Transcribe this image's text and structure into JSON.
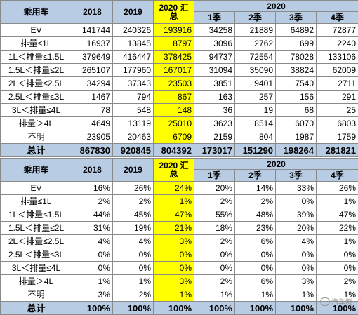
{
  "headers": {
    "corner": "乘用车",
    "y2018": "2018",
    "y2019": "2019",
    "total2020": "2020 汇总",
    "year2020": "2020",
    "q1": "1季",
    "q2": "2季",
    "q3": "3季",
    "q4": "4季"
  },
  "counts": {
    "rows": [
      {
        "label": "EV",
        "v2018": "141744",
        "v2019": "240326",
        "v2020": "193916",
        "q1": "34258",
        "q2": "21889",
        "q3": "64892",
        "q4": "72877"
      },
      {
        "label": "排量≤1L",
        "v2018": "16937",
        "v2019": "13845",
        "v2020": "8797",
        "q1": "3096",
        "q2": "2762",
        "q3": "699",
        "q4": "2240"
      },
      {
        "label": "1L＜排量≤1.5L",
        "v2018": "379649",
        "v2019": "416447",
        "v2020": "378425",
        "q1": "94737",
        "q2": "72554",
        "q3": "78028",
        "q4": "133106"
      },
      {
        "label": "1.5L＜排量≤2L",
        "v2018": "265107",
        "v2019": "177960",
        "v2020": "167017",
        "q1": "31094",
        "q2": "35090",
        "q3": "38824",
        "q4": "62009"
      },
      {
        "label": "2L＜排量≤2.5L",
        "v2018": "34294",
        "v2019": "37343",
        "v2020": "23503",
        "q1": "3851",
        "q2": "9401",
        "q3": "7540",
        "q4": "2711"
      },
      {
        "label": "2.5L＜排量≤3L",
        "v2018": "1467",
        "v2019": "794",
        "v2020": "867",
        "q1": "163",
        "q2": "257",
        "q3": "156",
        "q4": "291"
      },
      {
        "label": "3L＜排量≤4L",
        "v2018": "78",
        "v2019": "548",
        "v2020": "148",
        "q1": "36",
        "q2": "19",
        "q3": "68",
        "q4": "25"
      },
      {
        "label": "排量＞4L",
        "v2018": "4649",
        "v2019": "13119",
        "v2020": "25010",
        "q1": "3623",
        "q2": "8514",
        "q3": "6070",
        "q4": "6803"
      },
      {
        "label": "不明",
        "v2018": "23905",
        "v2019": "20463",
        "v2020": "6709",
        "q1": "2159",
        "q2": "804",
        "q3": "1987",
        "q4": "1759"
      }
    ],
    "total": {
      "label": "总计",
      "v2018": "867830",
      "v2019": "920845",
      "v2020": "804392",
      "q1": "173017",
      "q2": "151290",
      "q3": "198264",
      "q4": "281821"
    }
  },
  "shares": {
    "rows": [
      {
        "label": "EV",
        "v2018": "16%",
        "v2019": "26%",
        "v2020": "24%",
        "q1": "20%",
        "q2": "14%",
        "q3": "33%",
        "q4": "26%"
      },
      {
        "label": "排量≤1L",
        "v2018": "2%",
        "v2019": "2%",
        "v2020": "1%",
        "q1": "2%",
        "q2": "2%",
        "q3": "0%",
        "q4": "1%"
      },
      {
        "label": "1L＜排量≤1.5L",
        "v2018": "44%",
        "v2019": "45%",
        "v2020": "47%",
        "q1": "55%",
        "q2": "48%",
        "q3": "39%",
        "q4": "47%"
      },
      {
        "label": "1.5L＜排量≤2L",
        "v2018": "31%",
        "v2019": "19%",
        "v2020": "21%",
        "q1": "18%",
        "q2": "23%",
        "q3": "20%",
        "q4": "22%"
      },
      {
        "label": "2L＜排量≤2.5L",
        "v2018": "4%",
        "v2019": "4%",
        "v2020": "3%",
        "q1": "2%",
        "q2": "6%",
        "q3": "4%",
        "q4": "1%"
      },
      {
        "label": "2.5L＜排量≤3L",
        "v2018": "0%",
        "v2019": "0%",
        "v2020": "0%",
        "q1": "0%",
        "q2": "0%",
        "q3": "0%",
        "q4": "0%"
      },
      {
        "label": "3L＜排量≤4L",
        "v2018": "0%",
        "v2019": "0%",
        "v2020": "0%",
        "q1": "0%",
        "q2": "0%",
        "q3": "0%",
        "q4": "0%"
      },
      {
        "label": "排量＞4L",
        "v2018": "1%",
        "v2019": "1%",
        "v2020": "3%",
        "q1": "2%",
        "q2": "6%",
        "q3": "3%",
        "q4": "2%"
      },
      {
        "label": "不明",
        "v2018": "3%",
        "v2019": "2%",
        "v2020": "1%",
        "q1": "1%",
        "q2": "1%",
        "q3": "1%",
        "q4": "1%"
      }
    ],
    "total": {
      "label": "总计",
      "v2018": "100%",
      "v2019": "100%",
      "v2020": "100%",
      "q1": "100%",
      "q2": "100%",
      "q3": "100%",
      "q4": "100%"
    }
  },
  "watermark": "汽车测",
  "colors": {
    "header_bg": "#b8cce4",
    "highlight": "#ffff00",
    "border": "#8a8a8a"
  }
}
